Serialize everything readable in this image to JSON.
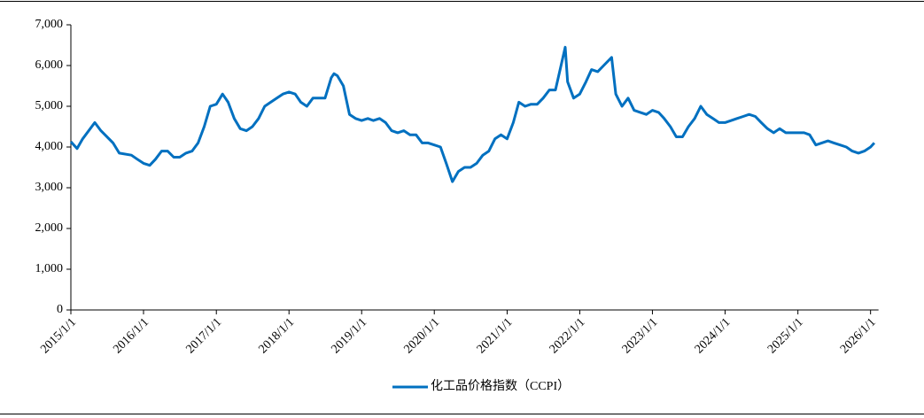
{
  "chart_data": {
    "type": "line",
    "x": [
      "2015/1/1",
      "2015/2/1",
      "2015/3/1",
      "2015/5/1",
      "2015/6/1",
      "2015/8/1",
      "2015/9/1",
      "2015/11/1",
      "2015/12/1",
      "2016/1/1",
      "2016/2/1",
      "2016/3/1",
      "2016/4/1",
      "2016/5/1",
      "2016/6/1",
      "2016/7/1",
      "2016/8/1",
      "2016/9/1",
      "2016/10/1",
      "2016/11/1",
      "2016/12/1",
      "2017/1/1",
      "2017/2/1",
      "2017/3/1",
      "2017/4/1",
      "2017/5/1",
      "2017/6/1",
      "2017/7/1",
      "2017/8/1",
      "2017/9/1",
      "2017/10/1",
      "2017/11/1",
      "2017/12/1",
      "2018/1/1",
      "2018/2/1",
      "2018/3/1",
      "2018/4/1",
      "2018/5/1",
      "2018/6/1",
      "2018/7/1",
      "2018/8/1",
      "2018/8/15",
      "2018/9/1",
      "2018/10/1",
      "2018/11/1",
      "2018/12/1",
      "2019/1/1",
      "2019/2/1",
      "2019/3/1",
      "2019/4/1",
      "2019/5/1",
      "2019/6/1",
      "2019/7/1",
      "2019/8/1",
      "2019/9/1",
      "2019/10/1",
      "2019/11/1",
      "2019/12/1",
      "2020/1/1",
      "2020/2/1",
      "2020/3/1",
      "2020/4/1",
      "2020/5/1",
      "2020/6/1",
      "2020/7/1",
      "2020/8/1",
      "2020/9/1",
      "2020/10/1",
      "2020/11/1",
      "2020/12/1",
      "2021/1/1",
      "2021/2/1",
      "2021/3/1",
      "2021/4/1",
      "2021/5/1",
      "2021/6/1",
      "2021/7/1",
      "2021/8/1",
      "2021/9/1",
      "2021/10/20",
      "2021/11/1",
      "2021/12/1",
      "2022/1/1",
      "2022/2/1",
      "2022/3/1",
      "2022/4/1",
      "2022/5/1",
      "2022/6/10",
      "2022/7/1",
      "2022/8/1",
      "2022/9/1",
      "2022/10/1",
      "2022/11/1",
      "2022/12/1",
      "2023/1/1",
      "2023/2/1",
      "2023/3/1",
      "2023/4/1",
      "2023/5/1",
      "2023/6/1",
      "2023/7/1",
      "2023/8/1",
      "2023/9/1",
      "2023/10/1",
      "2023/11/1",
      "2023/12/1",
      "2024/1/1",
      "2024/2/1",
      "2024/3/1",
      "2024/4/1",
      "2024/5/1",
      "2024/6/1",
      "2024/7/1",
      "2024/8/1",
      "2024/9/1",
      "2024/10/1",
      "2024/11/1",
      "2024/12/1",
      "2025/1/1",
      "2025/2/1",
      "2025/3/1",
      "2025/4/1",
      "2025/5/1",
      "2025/6/1",
      "2025/7/1",
      "2025/8/1",
      "2025/9/1",
      "2025/10/1",
      "2025/11/1",
      "2025/12/1",
      "2026/1/1",
      "2026/1/20"
    ],
    "series": [
      {
        "name": "化工品价格指数（CCPI）",
        "color": "#0070c0",
        "values": [
          4130,
          3960,
          4200,
          4600,
          4400,
          4100,
          3850,
          3800,
          3700,
          3600,
          3550,
          3700,
          3900,
          3900,
          3750,
          3750,
          3850,
          3900,
          4100,
          4500,
          5000,
          5050,
          5300,
          5100,
          4700,
          4450,
          4400,
          4500,
          4700,
          5000,
          5100,
          5200,
          5300,
          5350,
          5300,
          5100,
          5000,
          5200,
          5200,
          5200,
          5700,
          5800,
          5750,
          5500,
          4800,
          4700,
          4650,
          4700,
          4650,
          4700,
          4600,
          4400,
          4350,
          4400,
          4300,
          4300,
          4100,
          4100,
          4050,
          4000,
          3600,
          3150,
          3400,
          3500,
          3500,
          3600,
          3800,
          3900,
          4200,
          4300,
          4200,
          4600,
          5100,
          5000,
          5050,
          5050,
          5200,
          5400,
          5400,
          6450,
          5600,
          5200,
          5300,
          5600,
          5900,
          5850,
          6000,
          6200,
          5300,
          5000,
          5200,
          4900,
          4850,
          4800,
          4900,
          4850,
          4700,
          4500,
          4250,
          4250,
          4500,
          4700,
          5000,
          4800,
          4700,
          4600,
          4600,
          4650,
          4700,
          4750,
          4800,
          4750,
          4600,
          4450,
          4350,
          4450,
          4350,
          4350,
          4350,
          4350,
          4300,
          4050,
          4100,
          4150,
          4100,
          4050,
          4000,
          3900,
          3850,
          3900,
          4000,
          4100
        ]
      }
    ],
    "xlim": [
      "2015/1/1",
      "2026/2/10"
    ],
    "xticks": [
      "2015/1/1",
      "2016/1/1",
      "2017/1/1",
      "2018/1/1",
      "2019/1/1",
      "2020/1/1",
      "2021/1/1",
      "2022/1/1",
      "2023/1/1",
      "2024/1/1",
      "2025/1/1",
      "2026/1/1"
    ],
    "ylim": [
      0,
      7000
    ],
    "yticks": [
      0,
      {
        "value": 1000,
        "label": "1,000"
      },
      {
        "value": 2000,
        "label": "2,000"
      },
      {
        "value": 3000,
        "label": "3,000"
      },
      {
        "value": 4000,
        "label": "4,000"
      },
      {
        "value": 5000,
        "label": "5,000"
      },
      {
        "value": 6000,
        "label": "6,000"
      },
      {
        "value": 7000,
        "label": "7,000"
      }
    ],
    "grid": false,
    "legend": "bottom"
  }
}
